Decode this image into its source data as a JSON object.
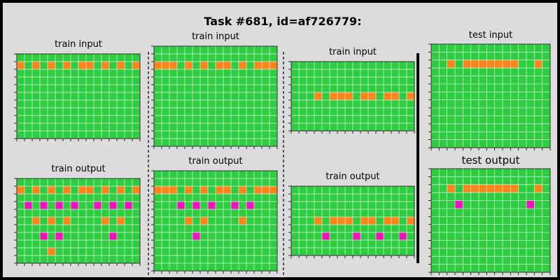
{
  "title": "Task #681, id=af726779:",
  "labels": {
    "train_input": "train input",
    "train_output": "train output",
    "test_input": "test input",
    "test_output": "test output"
  },
  "colors": {
    "background": "#dcdcdc",
    "grid_fill": "#2ecc40",
    "grid_line": "#d8f5d8",
    "orange": "#ff851b",
    "magenta": "#f012be"
  },
  "pairs": [
    {
      "input": {
        "rows": 11,
        "cols": 16,
        "cells": [
          [
            1,
            0,
            "orange"
          ],
          [
            1,
            2,
            "orange"
          ],
          [
            1,
            4,
            "orange"
          ],
          [
            1,
            6,
            "orange"
          ],
          [
            1,
            8,
            "orange"
          ],
          [
            1,
            9,
            "orange"
          ],
          [
            1,
            11,
            "orange"
          ],
          [
            1,
            13,
            "orange"
          ],
          [
            1,
            15,
            "orange"
          ]
        ]
      },
      "output": {
        "rows": 11,
        "cols": 16,
        "cells": [
          [
            1,
            0,
            "orange"
          ],
          [
            1,
            2,
            "orange"
          ],
          [
            1,
            4,
            "orange"
          ],
          [
            1,
            6,
            "orange"
          ],
          [
            1,
            8,
            "orange"
          ],
          [
            1,
            9,
            "orange"
          ],
          [
            1,
            11,
            "orange"
          ],
          [
            1,
            13,
            "orange"
          ],
          [
            1,
            15,
            "orange"
          ],
          [
            3,
            1,
            "magenta"
          ],
          [
            3,
            3,
            "magenta"
          ],
          [
            3,
            5,
            "magenta"
          ],
          [
            3,
            7,
            "magenta"
          ],
          [
            3,
            10,
            "magenta"
          ],
          [
            3,
            12,
            "magenta"
          ],
          [
            3,
            14,
            "magenta"
          ],
          [
            5,
            2,
            "orange"
          ],
          [
            5,
            4,
            "orange"
          ],
          [
            5,
            6,
            "orange"
          ],
          [
            5,
            11,
            "orange"
          ],
          [
            5,
            13,
            "orange"
          ],
          [
            7,
            3,
            "magenta"
          ],
          [
            7,
            5,
            "magenta"
          ],
          [
            7,
            12,
            "magenta"
          ],
          [
            9,
            4,
            "orange"
          ]
        ]
      }
    },
    {
      "input": {
        "rows": 13,
        "cols": 16,
        "cells": [
          [
            2,
            0,
            "orange"
          ],
          [
            2,
            1,
            "orange"
          ],
          [
            2,
            2,
            "orange"
          ],
          [
            2,
            4,
            "orange"
          ],
          [
            2,
            6,
            "orange"
          ],
          [
            2,
            8,
            "orange"
          ],
          [
            2,
            9,
            "orange"
          ],
          [
            2,
            11,
            "orange"
          ],
          [
            2,
            13,
            "orange"
          ],
          [
            2,
            14,
            "orange"
          ],
          [
            2,
            15,
            "orange"
          ]
        ]
      },
      "output": {
        "rows": 13,
        "cols": 16,
        "cells": [
          [
            2,
            0,
            "orange"
          ],
          [
            2,
            1,
            "orange"
          ],
          [
            2,
            2,
            "orange"
          ],
          [
            2,
            4,
            "orange"
          ],
          [
            2,
            6,
            "orange"
          ],
          [
            2,
            8,
            "orange"
          ],
          [
            2,
            9,
            "orange"
          ],
          [
            2,
            11,
            "orange"
          ],
          [
            2,
            13,
            "orange"
          ],
          [
            2,
            14,
            "orange"
          ],
          [
            2,
            15,
            "orange"
          ],
          [
            4,
            3,
            "magenta"
          ],
          [
            4,
            5,
            "magenta"
          ],
          [
            4,
            7,
            "magenta"
          ],
          [
            4,
            10,
            "magenta"
          ],
          [
            4,
            12,
            "magenta"
          ],
          [
            6,
            4,
            "orange"
          ],
          [
            6,
            6,
            "orange"
          ],
          [
            6,
            11,
            "orange"
          ],
          [
            8,
            5,
            "magenta"
          ]
        ]
      }
    },
    {
      "input": {
        "rows": 9,
        "cols": 16,
        "cells": [
          [
            4,
            3,
            "orange"
          ],
          [
            4,
            5,
            "orange"
          ],
          [
            4,
            6,
            "orange"
          ],
          [
            4,
            7,
            "orange"
          ],
          [
            4,
            9,
            "orange"
          ],
          [
            4,
            10,
            "orange"
          ],
          [
            4,
            12,
            "orange"
          ],
          [
            4,
            13,
            "orange"
          ],
          [
            4,
            15,
            "orange"
          ]
        ]
      },
      "output": {
        "rows": 9,
        "cols": 16,
        "cells": [
          [
            4,
            3,
            "orange"
          ],
          [
            4,
            5,
            "orange"
          ],
          [
            4,
            6,
            "orange"
          ],
          [
            4,
            7,
            "orange"
          ],
          [
            4,
            9,
            "orange"
          ],
          [
            4,
            10,
            "orange"
          ],
          [
            4,
            12,
            "orange"
          ],
          [
            4,
            13,
            "orange"
          ],
          [
            4,
            15,
            "orange"
          ],
          [
            6,
            4,
            "magenta"
          ],
          [
            6,
            8,
            "magenta"
          ],
          [
            6,
            11,
            "magenta"
          ],
          [
            6,
            14,
            "magenta"
          ]
        ]
      }
    }
  ],
  "test": {
    "input": {
      "rows": 13,
      "cols": 15,
      "cells": [
        [
          2,
          2,
          "orange"
        ],
        [
          2,
          4,
          "orange"
        ],
        [
          2,
          5,
          "orange"
        ],
        [
          2,
          6,
          "orange"
        ],
        [
          2,
          7,
          "orange"
        ],
        [
          2,
          8,
          "orange"
        ],
        [
          2,
          9,
          "orange"
        ],
        [
          2,
          10,
          "orange"
        ],
        [
          2,
          13,
          "orange"
        ]
      ]
    },
    "output": {
      "rows": 13,
      "cols": 15,
      "cells": [
        [
          2,
          2,
          "orange"
        ],
        [
          2,
          4,
          "orange"
        ],
        [
          2,
          5,
          "orange"
        ],
        [
          2,
          6,
          "orange"
        ],
        [
          2,
          7,
          "orange"
        ],
        [
          2,
          8,
          "orange"
        ],
        [
          2,
          9,
          "orange"
        ],
        [
          2,
          10,
          "orange"
        ],
        [
          2,
          13,
          "orange"
        ],
        [
          4,
          3,
          "magenta"
        ],
        [
          4,
          12,
          "magenta"
        ]
      ]
    }
  }
}
